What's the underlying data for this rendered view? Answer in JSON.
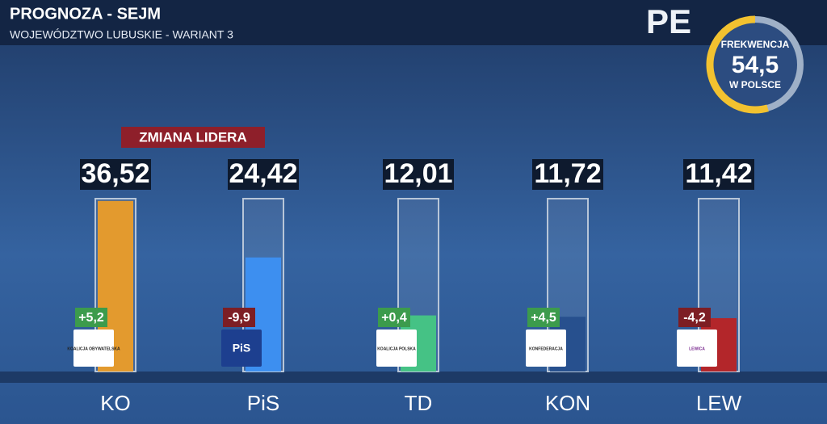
{
  "chart_data": {
    "type": "bar",
    "title": "PROGNOZA - SEJM",
    "subtitle": "WOJEWÓDZTWO LUBUSKIE - WARIANT 3",
    "annotation": "ZMIANA LIDERA",
    "brand": "PE",
    "categories": [
      "KO",
      "PiS",
      "TD",
      "KON",
      "LEW"
    ],
    "values": [
      36.52,
      24.42,
      12.01,
      11.72,
      11.42
    ],
    "value_labels": [
      "36,52",
      "24,42",
      "12,01",
      "11,72",
      "11,42"
    ],
    "change": [
      5.2,
      -9.9,
      0.4,
      4.5,
      -4.2
    ],
    "change_labels": [
      "+5,2",
      "-9,9",
      "+0,4",
      "+4,5",
      "-4,2"
    ],
    "logos": [
      "KOALICJA OBYWATELSKA",
      "PiS",
      "KOALICJA POLSKA",
      "KONFEDERACJA",
      "LEWICA"
    ],
    "colors": [
      "#e39a2e",
      "#3d8ff0",
      "#45c285",
      "#27508e",
      "#b3262a"
    ],
    "ylim": [
      0,
      37
    ],
    "turnout": {
      "label": "FREKWENCJA",
      "value": 54.5,
      "value_label": "54,5",
      "note": "W POLSCE"
    }
  }
}
